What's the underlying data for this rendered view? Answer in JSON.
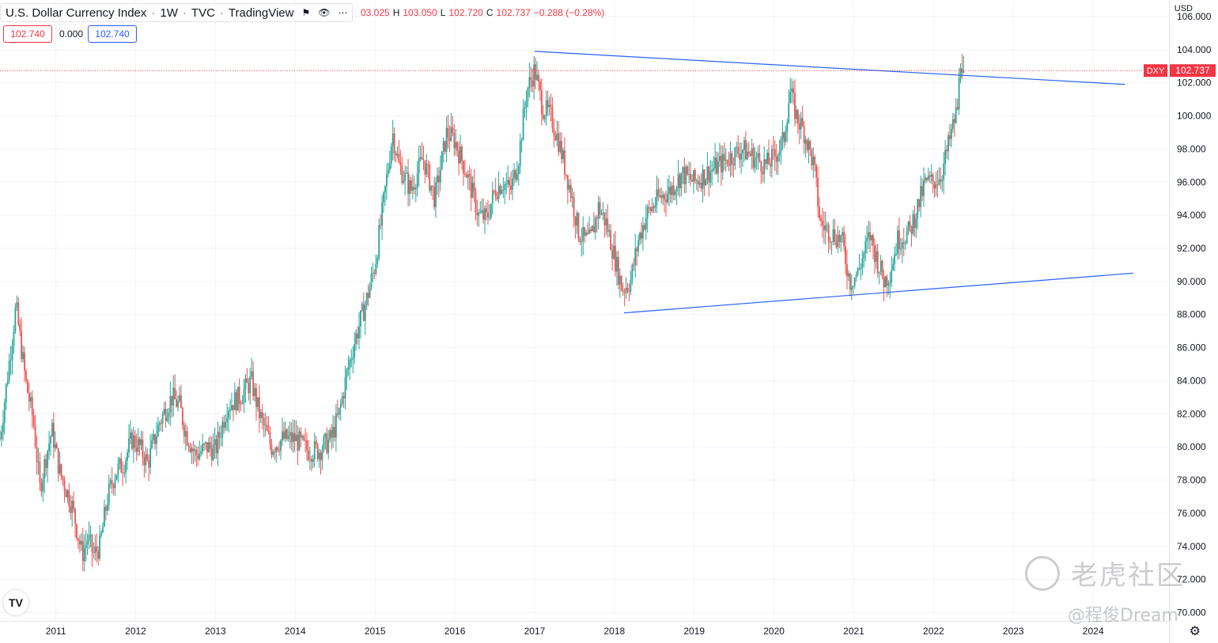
{
  "legend": {
    "title": "U.S. Dollar Currency Index",
    "interval": "1W",
    "source": "TVC",
    "platform": "TradingView"
  },
  "ohlc": {
    "open": "03.025",
    "high_label": "H",
    "high": "103.050",
    "low_label": "L",
    "low": "102.720",
    "close_label": "C",
    "close": "102.737",
    "change": "−0.288 (−0.28%)"
  },
  "mini_labels": {
    "sell": "102.740",
    "spread": "0.000",
    "buy": "102.740"
  },
  "axis": {
    "currency": "USD"
  },
  "price_tag": {
    "symbol": "DXY",
    "value": "102.737"
  },
  "watermark": {
    "brand": "老虎社区",
    "author": "@程俊Dream"
  },
  "colors": {
    "up": "#26a69a",
    "down": "#ef5350",
    "trendline": "#2962ff",
    "last_price": "#f23645"
  },
  "chart_data": {
    "type": "candlestick",
    "interval": "1W",
    "ylim": [
      69.5,
      107
    ],
    "y_ticks": [
      "106.000",
      "104.000",
      "102.000",
      "100.000",
      "98.000",
      "96.000",
      "94.000",
      "92.000",
      "90.000",
      "88.000",
      "86.000",
      "84.000",
      "82.000",
      "80.000",
      "78.000",
      "76.000",
      "74.000",
      "72.000",
      "70.000"
    ],
    "x_ticks": [
      "2011",
      "2012",
      "2013",
      "2014",
      "2015",
      "2016",
      "2017",
      "2018",
      "2019",
      "2020",
      "2021",
      "2022",
      "2023",
      "2024"
    ],
    "xlim": [
      2010.3,
      2024.95
    ],
    "last_price": 102.737,
    "path_points": [
      [
        2010.3,
        80.5
      ],
      [
        2010.45,
        86.5
      ],
      [
        2010.5,
        88.5
      ],
      [
        2010.62,
        84.0
      ],
      [
        2010.72,
        81.5
      ],
      [
        2010.8,
        77.5
      ],
      [
        2010.88,
        79.5
      ],
      [
        2010.95,
        81.0
      ],
      [
        2011.05,
        78.5
      ],
      [
        2011.2,
        76.5
      ],
      [
        2011.33,
        73.5
      ],
      [
        2011.4,
        74.5
      ],
      [
        2011.47,
        73.5
      ],
      [
        2011.55,
        74.0
      ],
      [
        2011.65,
        77.0
      ],
      [
        2011.75,
        78.5
      ],
      [
        2011.85,
        79.0
      ],
      [
        2011.95,
        80.5
      ],
      [
        2012.05,
        80.0
      ],
      [
        2012.15,
        79.0
      ],
      [
        2012.3,
        81.5
      ],
      [
        2012.45,
        83.0
      ],
      [
        2012.55,
        82.5
      ],
      [
        2012.62,
        81.0
      ],
      [
        2012.75,
        79.5
      ],
      [
        2012.9,
        80.0
      ],
      [
        2013.0,
        79.8
      ],
      [
        2013.15,
        82.5
      ],
      [
        2013.3,
        83.0
      ],
      [
        2013.45,
        84.0
      ],
      [
        2013.55,
        82.0
      ],
      [
        2013.7,
        80.0
      ],
      [
        2013.85,
        80.5
      ],
      [
        2014.0,
        80.5
      ],
      [
        2014.15,
        79.8
      ],
      [
        2014.3,
        79.8
      ],
      [
        2014.45,
        80.5
      ],
      [
        2014.55,
        82.0
      ],
      [
        2014.65,
        84.5
      ],
      [
        2014.75,
        86.5
      ],
      [
        2014.9,
        89.0
      ],
      [
        2015.0,
        91.0
      ],
      [
        2015.1,
        94.5
      ],
      [
        2015.22,
        99.0
      ],
      [
        2015.3,
        97.0
      ],
      [
        2015.45,
        95.5
      ],
      [
        2015.6,
        97.5
      ],
      [
        2015.75,
        95.0
      ],
      [
        2015.9,
        99.0
      ],
      [
        2016.0,
        98.5
      ],
      [
        2016.15,
        96.5
      ],
      [
        2016.3,
        94.0
      ],
      [
        2016.4,
        93.8
      ],
      [
        2016.5,
        95.5
      ],
      [
        2016.6,
        96.0
      ],
      [
        2016.7,
        95.5
      ],
      [
        2016.8,
        97.5
      ],
      [
        2016.9,
        101.5
      ],
      [
        2017.0,
        102.8
      ],
      [
        2017.1,
        100.5
      ],
      [
        2017.2,
        100.0
      ],
      [
        2017.3,
        98.5
      ],
      [
        2017.45,
        95.5
      ],
      [
        2017.55,
        93.0
      ],
      [
        2017.62,
        92.5
      ],
      [
        2017.7,
        92.5
      ],
      [
        2017.8,
        94.5
      ],
      [
        2017.9,
        93.5
      ],
      [
        2018.0,
        91.5
      ],
      [
        2018.1,
        89.5
      ],
      [
        2018.2,
        90.0
      ],
      [
        2018.3,
        92.5
      ],
      [
        2018.4,
        94.0
      ],
      [
        2018.55,
        95.0
      ],
      [
        2018.7,
        95.5
      ],
      [
        2018.85,
        96.5
      ],
      [
        2019.0,
        96.0
      ],
      [
        2019.15,
        96.5
      ],
      [
        2019.3,
        97.0
      ],
      [
        2019.45,
        97.5
      ],
      [
        2019.6,
        98.0
      ],
      [
        2019.75,
        97.5
      ],
      [
        2019.9,
        97.0
      ],
      [
        2020.0,
        97.5
      ],
      [
        2020.12,
        98.5
      ],
      [
        2020.2,
        101.5
      ],
      [
        2020.28,
        100.0
      ],
      [
        2020.38,
        99.0
      ],
      [
        2020.5,
        97.0
      ],
      [
        2020.58,
        93.5
      ],
      [
        2020.7,
        93.0
      ],
      [
        2020.85,
        92.5
      ],
      [
        2020.95,
        90.0
      ],
      [
        2021.05,
        90.5
      ],
      [
        2021.2,
        92.8
      ],
      [
        2021.28,
        91.5
      ],
      [
        2021.38,
        90.0
      ],
      [
        2021.45,
        90.5
      ],
      [
        2021.55,
        92.5
      ],
      [
        2021.7,
        93.0
      ],
      [
        2021.8,
        94.5
      ],
      [
        2021.9,
        96.0
      ],
      [
        2022.0,
        96.0
      ],
      [
        2022.1,
        96.5
      ],
      [
        2022.2,
        98.5
      ],
      [
        2022.3,
        100.5
      ],
      [
        2022.34,
        103.5
      ],
      [
        2022.38,
        103.0
      ]
    ],
    "trendlines": [
      {
        "from": [
          2017.0,
          103.9
        ],
        "to": [
          2024.4,
          101.9
        ]
      },
      {
        "from": [
          2018.12,
          88.1
        ],
        "to": [
          2024.5,
          90.5
        ]
      }
    ]
  }
}
